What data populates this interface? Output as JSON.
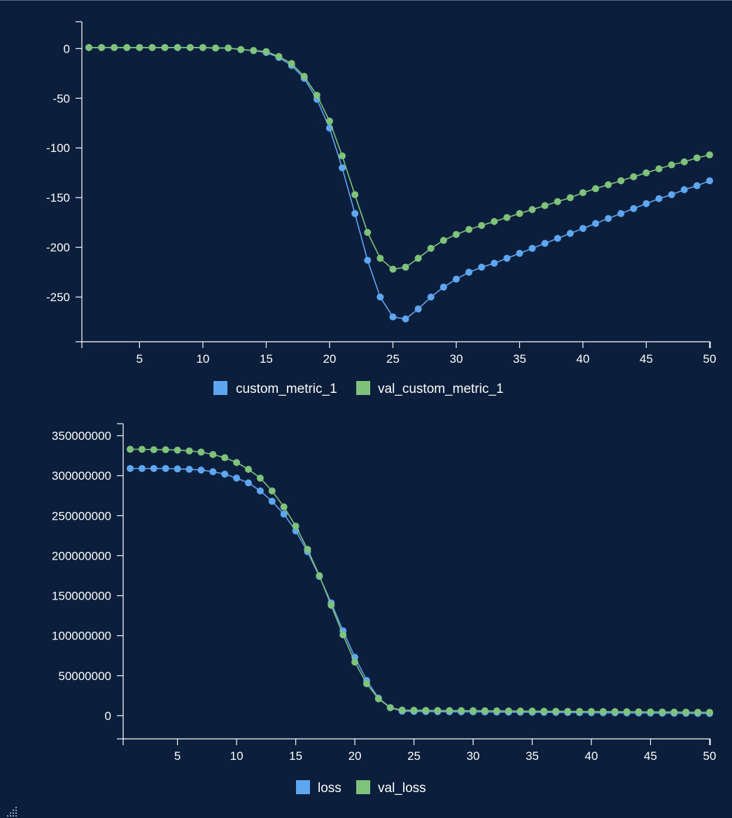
{
  "chart_data": [
    {
      "type": "line",
      "title": "",
      "xlabel": "",
      "ylabel": "",
      "xlim": [
        1,
        50
      ],
      "ylim": [
        -295,
        27
      ],
      "x_ticks": [
        "5",
        "10",
        "15",
        "20",
        "25",
        "30",
        "35",
        "40",
        "45",
        "50"
      ],
      "y_ticks": [
        "0",
        "-50",
        "-100",
        "-150",
        "-200",
        "-250"
      ],
      "legend_position": "bottom-center",
      "x": [
        1,
        2,
        3,
        4,
        5,
        6,
        7,
        8,
        9,
        10,
        11,
        12,
        13,
        14,
        15,
        16,
        17,
        18,
        19,
        20,
        21,
        22,
        23,
        24,
        25,
        26,
        27,
        28,
        29,
        30,
        31,
        32,
        33,
        34,
        35,
        36,
        37,
        38,
        39,
        40,
        41,
        42,
        43,
        44,
        45,
        46,
        47,
        48,
        49,
        50
      ],
      "series": [
        {
          "name": "custom_metric_1",
          "color": "#5ea6f0",
          "values": [
            1,
            1,
            1,
            1,
            1,
            1,
            1,
            1,
            1,
            1,
            0.5,
            0.5,
            -1,
            -2,
            -4,
            -9,
            -17,
            -30,
            -51,
            -80,
            -120,
            -166,
            -213,
            -250,
            -270,
            -272,
            -262,
            -250,
            -240,
            -232,
            -225,
            -220,
            -216,
            -211,
            -206,
            -201,
            -196,
            -191,
            -186,
            -181,
            -176,
            -171,
            -166,
            -161,
            -156,
            -151,
            -147,
            -142,
            -138,
            -133
          ]
        },
        {
          "name": "val_custom_metric_1",
          "color": "#7fc37a",
          "values": [
            1,
            1,
            1,
            1,
            1,
            1,
            1,
            1,
            1,
            1,
            0.5,
            0.5,
            -1,
            -2,
            -3,
            -8,
            -15,
            -28,
            -47,
            -73,
            -108,
            -147,
            -185,
            -211,
            -222,
            -220,
            -211,
            -201,
            -193,
            -187,
            -182,
            -178,
            -174,
            -170,
            -166,
            -162,
            -158,
            -154,
            -150,
            -145,
            -141,
            -137,
            -133,
            -129,
            -125,
            -121,
            -117,
            -114,
            -110,
            -107
          ]
        }
      ]
    },
    {
      "type": "line",
      "title": "",
      "xlabel": "",
      "ylabel": "",
      "xlim": [
        1,
        50
      ],
      "ylim": [
        -29000000,
        365000000
      ],
      "x_ticks": [
        "5",
        "10",
        "15",
        "20",
        "25",
        "30",
        "35",
        "40",
        "45",
        "50"
      ],
      "y_ticks": [
        "0",
        "50000000",
        "100000000",
        "150000000",
        "200000000",
        "250000000",
        "300000000",
        "350000000"
      ],
      "legend_position": "bottom-center",
      "x": [
        1,
        2,
        3,
        4,
        5,
        6,
        7,
        8,
        9,
        10,
        11,
        12,
        13,
        14,
        15,
        16,
        17,
        18,
        19,
        20,
        21,
        22,
        23,
        24,
        25,
        26,
        27,
        28,
        29,
        30,
        31,
        32,
        33,
        34,
        35,
        36,
        37,
        38,
        39,
        40,
        41,
        42,
        43,
        44,
        45,
        46,
        47,
        48,
        49,
        50
      ],
      "series": [
        {
          "name": "loss",
          "color": "#5ea6f0",
          "values": [
            309000000,
            309000000,
            309000000,
            309000000,
            308500000,
            308000000,
            307000000,
            305000000,
            302000000,
            297000000,
            291000000,
            281000000,
            268000000,
            252000000,
            231000000,
            205000000,
            174000000,
            141000000,
            106000000,
            73000000,
            44000000,
            22000000,
            10000000,
            5500000,
            5300000,
            5100000,
            5000000,
            4900000,
            4800000,
            4700000,
            4600000,
            4500000,
            4400000,
            4300000,
            4200000,
            4100000,
            4000000,
            3900000,
            3800000,
            3700000,
            3600000,
            3500000,
            3400000,
            3300000,
            3200000,
            3100000,
            3000000,
            2900000,
            2800000,
            2700000
          ]
        },
        {
          "name": "val_loss",
          "color": "#7fc37a",
          "values": [
            333000000,
            333000000,
            332500000,
            332500000,
            332000000,
            331000000,
            329500000,
            326500000,
            322500000,
            316500000,
            308000000,
            297000000,
            281000000,
            261000000,
            237000000,
            208000000,
            175000000,
            138000000,
            101000000,
            67000000,
            40000000,
            21000000,
            10000000,
            7000000,
            6800000,
            6600000,
            6500000,
            6400000,
            6300000,
            6200000,
            6100000,
            6000000,
            5900000,
            5800000,
            5700000,
            5600000,
            5500000,
            5400000,
            5300000,
            5200000,
            5100000,
            5000000,
            4900000,
            4800000,
            4700000,
            4600000,
            4500000,
            4400000,
            4300000,
            4200000
          ]
        }
      ]
    }
  ],
  "colors": {
    "background": "#0b1f3d",
    "axis": "#ffffff"
  },
  "icons": {
    "resize": "resize-grip-icon"
  }
}
